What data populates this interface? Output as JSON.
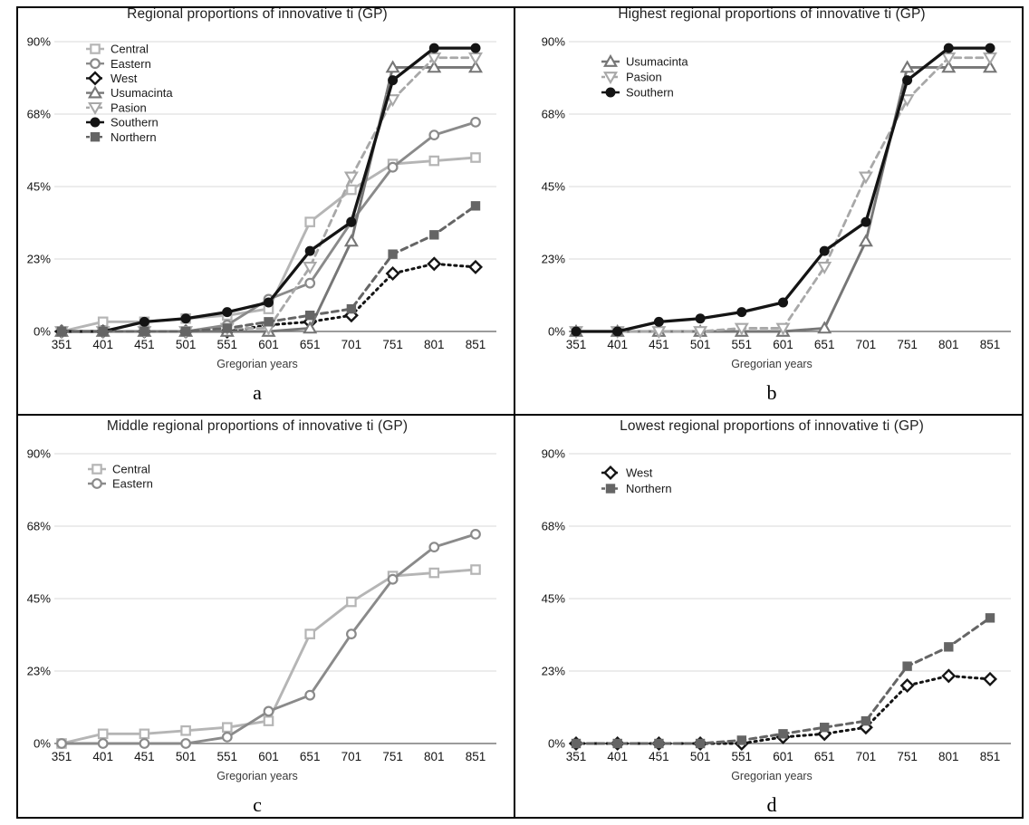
{
  "figure": {
    "background": "#ffffff",
    "border_color": "#000000",
    "gridline_color": "#d8d8d8",
    "axisline_color": "#7a7a7a",
    "text_color": "#1f1f1f"
  },
  "chart_data": [
    {
      "id": "a",
      "type": "line",
      "title": "Regional proportions of innovative ti (GP)",
      "caption": "a",
      "xlabel": "Gregorian years",
      "ylabel": "",
      "x": [
        351,
        401,
        451,
        501,
        551,
        601,
        651,
        701,
        751,
        801,
        851
      ],
      "ylim": [
        0,
        90
      ],
      "ytick_labels": [
        "0%",
        "23%",
        "45%",
        "68%",
        "90%"
      ],
      "grid": true,
      "legend_position": "top-left",
      "series": [
        {
          "name": "Central",
          "values": [
            0,
            3,
            3,
            4,
            5,
            7,
            34,
            44,
            52,
            53,
            54
          ],
          "color": "#b5b5b5",
          "marker": "square-open",
          "line_style": "solid",
          "line_width": 2.9
        },
        {
          "name": "Eastern",
          "values": [
            0,
            0,
            0,
            0,
            2,
            10,
            15,
            34,
            51,
            61,
            65
          ],
          "color": "#8a8a8a",
          "marker": "circle-open",
          "line_style": "solid",
          "line_width": 2.9
        },
        {
          "name": "West",
          "values": [
            0,
            0,
            0,
            0,
            0,
            2,
            3,
            5,
            18,
            21,
            20
          ],
          "color": "#141414",
          "marker": "diamond-open",
          "line_style": "dotted",
          "line_width": 3.0
        },
        {
          "name": "Usumacinta",
          "values": [
            0,
            0,
            0,
            0,
            0,
            0,
            1,
            28,
            82,
            82,
            82
          ],
          "color": "#767676",
          "marker": "triangle-up-open",
          "line_style": "solid",
          "line_width": 2.9
        },
        {
          "name": "Pasion",
          "values": [
            0,
            0,
            0,
            0,
            1,
            1,
            20,
            48,
            72,
            85,
            85
          ],
          "color": "#a8a8a8",
          "marker": "triangle-down-open",
          "line_style": "dashed",
          "line_width": 2.8
        },
        {
          "name": "Southern",
          "values": [
            0,
            0,
            3,
            4,
            6,
            9,
            25,
            34,
            78,
            88,
            88
          ],
          "color": "#141414",
          "marker": "circle-filled",
          "line_style": "solid",
          "line_width": 3.3
        },
        {
          "name": "Northern",
          "values": [
            0,
            0,
            0,
            0,
            1,
            3,
            5,
            7,
            24,
            30,
            39
          ],
          "color": "#656565",
          "marker": "square-filled",
          "line_style": "dashed",
          "line_width": 3.0
        }
      ]
    },
    {
      "id": "b",
      "type": "line",
      "title": "Highest regional proportions of innovative ti (GP)",
      "caption": "b",
      "xlabel": "Gregorian years",
      "ylabel": "",
      "x": [
        351,
        401,
        451,
        501,
        551,
        601,
        651,
        701,
        751,
        801,
        851
      ],
      "ylim": [
        0,
        90
      ],
      "ytick_labels": [
        "0%",
        "23%",
        "45%",
        "68%",
        "90%"
      ],
      "grid": true,
      "legend_position": "top-left",
      "series": [
        {
          "name": "Usumacinta",
          "values": [
            0,
            0,
            0,
            0,
            0,
            0,
            1,
            28,
            82,
            82,
            82
          ],
          "color": "#767676",
          "marker": "triangle-up-open",
          "line_style": "solid",
          "line_width": 2.9
        },
        {
          "name": "Pasion",
          "values": [
            0,
            0,
            0,
            0,
            1,
            1,
            20,
            48,
            72,
            85,
            85
          ],
          "color": "#a8a8a8",
          "marker": "triangle-down-open",
          "line_style": "dashed",
          "line_width": 2.8
        },
        {
          "name": "Southern",
          "values": [
            0,
            0,
            3,
            4,
            6,
            9,
            25,
            34,
            78,
            88,
            88
          ],
          "color": "#141414",
          "marker": "circle-filled",
          "line_style": "solid",
          "line_width": 3.3
        }
      ]
    },
    {
      "id": "c",
      "type": "line",
      "title": "Middle regional proportions of innovative ti (GP)",
      "caption": "c",
      "xlabel": "Gregorian years",
      "ylabel": "",
      "x": [
        351,
        401,
        451,
        501,
        551,
        601,
        651,
        701,
        751,
        801,
        851
      ],
      "ylim": [
        0,
        90
      ],
      "ytick_labels": [
        "0%",
        "23%",
        "45%",
        "68%",
        "90%"
      ],
      "grid": true,
      "legend_position": "top-left",
      "series": [
        {
          "name": "Central",
          "values": [
            0,
            3,
            3,
            4,
            5,
            7,
            34,
            44,
            52,
            53,
            54
          ],
          "color": "#b5b5b5",
          "marker": "square-open",
          "line_style": "solid",
          "line_width": 2.9
        },
        {
          "name": "Eastern",
          "values": [
            0,
            0,
            0,
            0,
            2,
            10,
            15,
            34,
            51,
            61,
            65
          ],
          "color": "#8a8a8a",
          "marker": "circle-open",
          "line_style": "solid",
          "line_width": 2.9
        }
      ]
    },
    {
      "id": "d",
      "type": "line",
      "title": "Lowest regional proportions of innovative ti (GP)",
      "caption": "d",
      "xlabel": "Gregorian years",
      "ylabel": "",
      "x": [
        351,
        401,
        451,
        501,
        551,
        601,
        651,
        701,
        751,
        801,
        851
      ],
      "ylim": [
        0,
        90
      ],
      "ytick_labels": [
        "0%",
        "23%",
        "45%",
        "68%",
        "90%"
      ],
      "grid": true,
      "legend_position": "top-left",
      "series": [
        {
          "name": "West",
          "values": [
            0,
            0,
            0,
            0,
            0,
            2,
            3,
            5,
            18,
            21,
            20
          ],
          "color": "#141414",
          "marker": "diamond-open",
          "line_style": "dotted",
          "line_width": 3.0
        },
        {
          "name": "Northern",
          "values": [
            0,
            0,
            0,
            0,
            1,
            3,
            5,
            7,
            24,
            30,
            39
          ],
          "color": "#656565",
          "marker": "square-filled",
          "line_style": "dashed",
          "line_width": 3.0
        }
      ]
    }
  ]
}
